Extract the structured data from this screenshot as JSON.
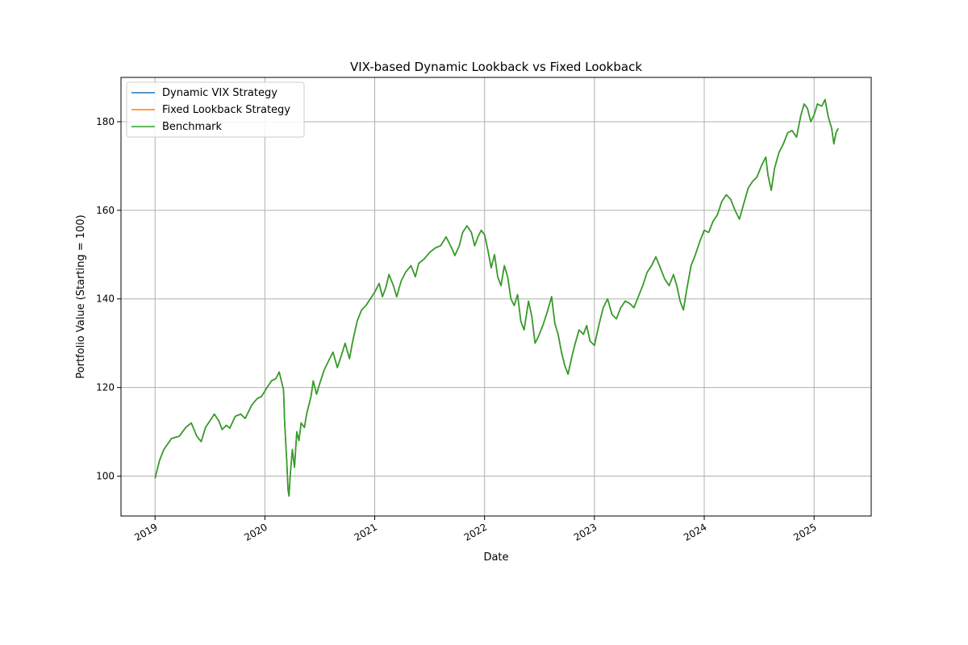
{
  "chart_data": {
    "type": "line",
    "title": "VIX-based Dynamic Lookback vs Fixed Lookback",
    "xlabel": "Date",
    "ylabel": "Portfolio Value (Starting = 100)",
    "xlim": [
      2018.69,
      2025.52
    ],
    "ylim": [
      91,
      190
    ],
    "xticks": [
      {
        "value": 2019,
        "label": "2019"
      },
      {
        "value": 2020,
        "label": "2020"
      },
      {
        "value": 2021,
        "label": "2021"
      },
      {
        "value": 2022,
        "label": "2022"
      },
      {
        "value": 2023,
        "label": "2023"
      },
      {
        "value": 2024,
        "label": "2024"
      },
      {
        "value": 2025,
        "label": "2025"
      }
    ],
    "yticks": [
      {
        "value": 100,
        "label": "100"
      },
      {
        "value": 120,
        "label": "120"
      },
      {
        "value": 140,
        "label": "140"
      },
      {
        "value": 160,
        "label": "160"
      },
      {
        "value": 180,
        "label": "180"
      }
    ],
    "grid": true,
    "legend_position": "top-left",
    "series": [
      {
        "name": "Dynamic VIX Strategy",
        "color": "#1f77b4",
        "points": "benchmark"
      },
      {
        "name": "Fixed Lookback Strategy",
        "color": "#ff7f0e",
        "points": "benchmark"
      },
      {
        "name": "Benchmark",
        "color": "#2ca02c",
        "points": [
          [
            2019.0,
            99.5
          ],
          [
            2019.04,
            103.5
          ],
          [
            2019.08,
            106.0
          ],
          [
            2019.15,
            108.5
          ],
          [
            2019.22,
            109.0
          ],
          [
            2019.28,
            111.0
          ],
          [
            2019.33,
            112.0
          ],
          [
            2019.38,
            109.0
          ],
          [
            2019.42,
            107.8
          ],
          [
            2019.46,
            111.0
          ],
          [
            2019.5,
            112.5
          ],
          [
            2019.54,
            114.0
          ],
          [
            2019.58,
            112.5
          ],
          [
            2019.61,
            110.5
          ],
          [
            2019.65,
            111.5
          ],
          [
            2019.68,
            110.8
          ],
          [
            2019.73,
            113.5
          ],
          [
            2019.78,
            114.0
          ],
          [
            2019.82,
            113.0
          ],
          [
            2019.88,
            116.0
          ],
          [
            2019.93,
            117.5
          ],
          [
            2019.97,
            118.0
          ],
          [
            2020.02,
            120.0
          ],
          [
            2020.06,
            121.5
          ],
          [
            2020.1,
            122.0
          ],
          [
            2020.13,
            123.5
          ],
          [
            2020.15,
            121.5
          ],
          [
            2020.17,
            119.5
          ],
          [
            2020.18,
            112.0
          ],
          [
            2020.2,
            103.0
          ],
          [
            2020.21,
            97.0
          ],
          [
            2020.22,
            95.5
          ],
          [
            2020.23,
            100.0
          ],
          [
            2020.25,
            106.0
          ],
          [
            2020.27,
            102.0
          ],
          [
            2020.29,
            110.0
          ],
          [
            2020.31,
            108.0
          ],
          [
            2020.33,
            112.0
          ],
          [
            2020.36,
            111.0
          ],
          [
            2020.38,
            114.0
          ],
          [
            2020.42,
            118.0
          ],
          [
            2020.44,
            121.5
          ],
          [
            2020.47,
            118.5
          ],
          [
            2020.5,
            121.0
          ],
          [
            2020.54,
            124.0
          ],
          [
            2020.58,
            126.0
          ],
          [
            2020.62,
            128.0
          ],
          [
            2020.66,
            124.5
          ],
          [
            2020.7,
            127.5
          ],
          [
            2020.73,
            130.0
          ],
          [
            2020.77,
            126.5
          ],
          [
            2020.8,
            130.5
          ],
          [
            2020.84,
            135.0
          ],
          [
            2020.88,
            137.5
          ],
          [
            2020.92,
            138.5
          ],
          [
            2020.96,
            140.0
          ],
          [
            2021.0,
            141.5
          ],
          [
            2021.04,
            143.5
          ],
          [
            2021.07,
            140.5
          ],
          [
            2021.1,
            142.5
          ],
          [
            2021.13,
            145.5
          ],
          [
            2021.17,
            143.0
          ],
          [
            2021.2,
            140.5
          ],
          [
            2021.24,
            144.0
          ],
          [
            2021.28,
            146.0
          ],
          [
            2021.33,
            147.5
          ],
          [
            2021.37,
            145.0
          ],
          [
            2021.4,
            148.0
          ],
          [
            2021.45,
            149.0
          ],
          [
            2021.5,
            150.5
          ],
          [
            2021.55,
            151.5
          ],
          [
            2021.6,
            152.0
          ],
          [
            2021.65,
            154.0
          ],
          [
            2021.7,
            151.5
          ],
          [
            2021.73,
            149.8
          ],
          [
            2021.77,
            152.0
          ],
          [
            2021.8,
            155.0
          ],
          [
            2021.84,
            156.5
          ],
          [
            2021.88,
            155.0
          ],
          [
            2021.91,
            152.0
          ],
          [
            2021.94,
            154.0
          ],
          [
            2021.97,
            155.5
          ],
          [
            2022.0,
            154.5
          ],
          [
            2022.03,
            151.0
          ],
          [
            2022.06,
            147.0
          ],
          [
            2022.09,
            150.0
          ],
          [
            2022.12,
            145.0
          ],
          [
            2022.15,
            143.0
          ],
          [
            2022.18,
            147.5
          ],
          [
            2022.21,
            145.0
          ],
          [
            2022.24,
            140.0
          ],
          [
            2022.27,
            138.5
          ],
          [
            2022.3,
            141.0
          ],
          [
            2022.33,
            135.0
          ],
          [
            2022.36,
            133.0
          ],
          [
            2022.4,
            139.5
          ],
          [
            2022.43,
            136.0
          ],
          [
            2022.46,
            130.0
          ],
          [
            2022.49,
            131.5
          ],
          [
            2022.53,
            134.0
          ],
          [
            2022.57,
            137.0
          ],
          [
            2022.61,
            140.5
          ],
          [
            2022.64,
            134.5
          ],
          [
            2022.67,
            132.0
          ],
          [
            2022.7,
            128.0
          ],
          [
            2022.73,
            125.0
          ],
          [
            2022.76,
            123.0
          ],
          [
            2022.79,
            126.5
          ],
          [
            2022.82,
            129.5
          ],
          [
            2022.86,
            133.0
          ],
          [
            2022.9,
            132.0
          ],
          [
            2022.93,
            134.0
          ],
          [
            2022.96,
            130.5
          ],
          [
            2023.0,
            129.5
          ],
          [
            2023.04,
            134.0
          ],
          [
            2023.08,
            138.0
          ],
          [
            2023.12,
            140.0
          ],
          [
            2023.16,
            136.5
          ],
          [
            2023.2,
            135.5
          ],
          [
            2023.24,
            138.0
          ],
          [
            2023.28,
            139.5
          ],
          [
            2023.32,
            139.0
          ],
          [
            2023.36,
            138.0
          ],
          [
            2023.4,
            140.5
          ],
          [
            2023.44,
            143.0
          ],
          [
            2023.48,
            146.0
          ],
          [
            2023.52,
            147.5
          ],
          [
            2023.56,
            149.5
          ],
          [
            2023.6,
            147.0
          ],
          [
            2023.64,
            144.5
          ],
          [
            2023.68,
            143.0
          ],
          [
            2023.72,
            145.5
          ],
          [
            2023.75,
            143.0
          ],
          [
            2023.78,
            139.5
          ],
          [
            2023.81,
            137.5
          ],
          [
            2023.84,
            142.0
          ],
          [
            2023.88,
            147.5
          ],
          [
            2023.92,
            150.0
          ],
          [
            2023.96,
            153.0
          ],
          [
            2024.0,
            155.5
          ],
          [
            2024.04,
            155.0
          ],
          [
            2024.08,
            157.5
          ],
          [
            2024.12,
            159.0
          ],
          [
            2024.16,
            162.0
          ],
          [
            2024.2,
            163.5
          ],
          [
            2024.24,
            162.5
          ],
          [
            2024.28,
            160.0
          ],
          [
            2024.32,
            158.0
          ],
          [
            2024.36,
            161.5
          ],
          [
            2024.4,
            165.0
          ],
          [
            2024.44,
            166.5
          ],
          [
            2024.48,
            167.5
          ],
          [
            2024.52,
            170.0
          ],
          [
            2024.56,
            172.0
          ],
          [
            2024.58,
            168.0
          ],
          [
            2024.61,
            164.5
          ],
          [
            2024.64,
            169.5
          ],
          [
            2024.68,
            173.0
          ],
          [
            2024.72,
            175.0
          ],
          [
            2024.76,
            177.5
          ],
          [
            2024.8,
            178.0
          ],
          [
            2024.84,
            176.5
          ],
          [
            2024.88,
            181.5
          ],
          [
            2024.91,
            184.0
          ],
          [
            2024.94,
            183.0
          ],
          [
            2024.97,
            180.0
          ],
          [
            2025.0,
            181.5
          ],
          [
            2025.03,
            184.0
          ],
          [
            2025.07,
            183.5
          ],
          [
            2025.1,
            185.0
          ],
          [
            2025.13,
            181.0
          ],
          [
            2025.16,
            178.5
          ],
          [
            2025.18,
            175.0
          ],
          [
            2025.2,
            177.5
          ],
          [
            2025.22,
            178.5
          ]
        ]
      }
    ]
  }
}
